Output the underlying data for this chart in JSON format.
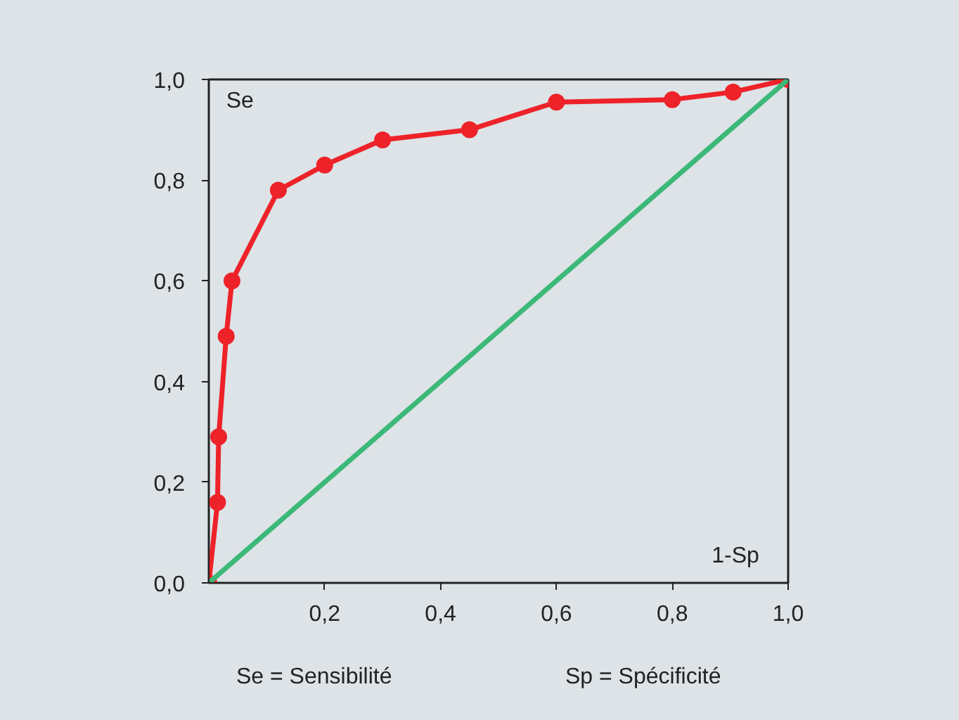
{
  "chart_data": {
    "type": "line",
    "xlabel": "1-Sp",
    "ylabel": "Se",
    "annotations": [
      {
        "text": "Se = Sensibilité"
      },
      {
        "text": "Sp = Spécificité"
      }
    ],
    "series": [
      {
        "color": "#ee2229",
        "marker": "circle",
        "x": [
          0,
          0.015,
          0.017,
          0.03,
          0.04,
          0.12,
          0.2,
          0.3,
          0.45,
          0.6,
          0.8,
          0.905,
          1.0
        ],
        "values": [
          0,
          0.16,
          0.29,
          0.49,
          0.6,
          0.78,
          0.83,
          0.88,
          0.9,
          0.955,
          0.96,
          0.975,
          1.0
        ]
      },
      {
        "color": "#3cb878",
        "marker": "none",
        "x": [
          0,
          1
        ],
        "values": [
          0,
          1
        ]
      }
    ],
    "xlim": [
      0,
      1
    ],
    "ylim": [
      0,
      1
    ],
    "xticks": [
      {
        "value": 0.2,
        "label": "0,2"
      },
      {
        "value": 0.4,
        "label": "0,4"
      },
      {
        "value": 0.6,
        "label": "0,6"
      },
      {
        "value": 0.8,
        "label": "0,8"
      },
      {
        "value": 1.0,
        "label": "1,0"
      }
    ],
    "yticks": [
      {
        "value": 0,
        "label": "0,0"
      },
      {
        "value": 0.2,
        "label": "0,2"
      },
      {
        "value": 0.4,
        "label": "0,4"
      },
      {
        "value": 0.6,
        "label": "0,6"
      },
      {
        "value": 0.8,
        "label": "0,8"
      },
      {
        "value": 1.0,
        "label": "1,0"
      }
    ],
    "grid": false
  }
}
